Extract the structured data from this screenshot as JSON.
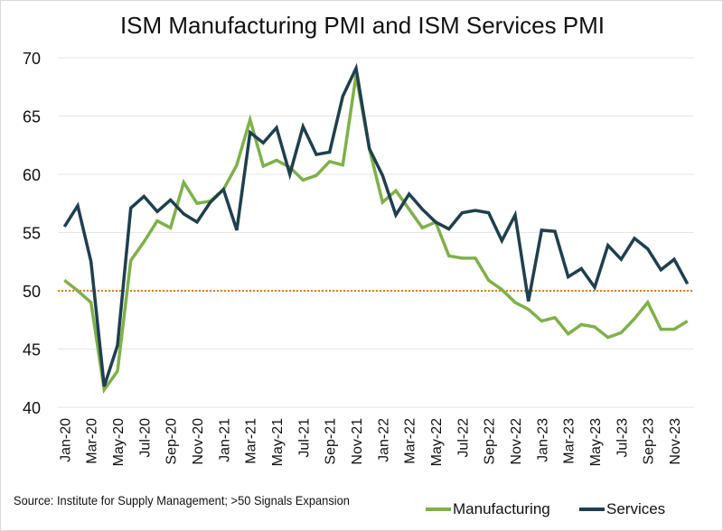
{
  "chart_data": {
    "type": "line",
    "title": "ISM Manufacturing PMI and ISM Services PMI",
    "xlabel": "",
    "ylabel": "",
    "ylim": [
      40,
      70
    ],
    "yticks": [
      40,
      45,
      50,
      55,
      60,
      65,
      70
    ],
    "grid": true,
    "legend": "bottom-right",
    "categories": [
      "Jan-20",
      "Feb-20",
      "Mar-20",
      "Apr-20",
      "May-20",
      "Jun-20",
      "Jul-20",
      "Aug-20",
      "Sep-20",
      "Oct-20",
      "Nov-20",
      "Dec-20",
      "Jan-21",
      "Feb-21",
      "Mar-21",
      "Apr-21",
      "May-21",
      "Jun-21",
      "Jul-21",
      "Aug-21",
      "Sep-21",
      "Oct-21",
      "Nov-21",
      "Dec-21",
      "Jan-22",
      "Feb-22",
      "Mar-22",
      "Apr-22",
      "May-22",
      "Jun-22",
      "Jul-22",
      "Aug-22",
      "Sep-22",
      "Oct-22",
      "Nov-22",
      "Dec-22",
      "Jan-23",
      "Feb-23",
      "Mar-23",
      "Apr-23",
      "May-23",
      "Jun-23",
      "Jul-23",
      "Aug-23",
      "Sep-23",
      "Oct-23",
      "Nov-23",
      "Dec-23"
    ],
    "tick_labels": [
      "Jan-20",
      "Mar-20",
      "May-20",
      "Jul-20",
      "Sep-20",
      "Nov-20",
      "Jan-21",
      "Mar-21",
      "May-21",
      "Jul-21",
      "Sep-21",
      "Nov-21",
      "Jan-22",
      "Mar-22",
      "May-22",
      "Jul-22",
      "Sep-22",
      "Nov-22",
      "Jan-23",
      "Mar-23",
      "May-23",
      "Jul-23",
      "Sep-23",
      "Nov-23"
    ],
    "series": [
      {
        "name": "Manufacturing",
        "color": "#7fb04a",
        "values": [
          50.9,
          50.0,
          49.0,
          41.5,
          43.1,
          52.6,
          54.2,
          56.0,
          55.4,
          59.3,
          57.5,
          57.7,
          58.7,
          60.8,
          64.7,
          60.7,
          61.2,
          60.6,
          59.5,
          59.9,
          61.1,
          60.8,
          68.5,
          62.2,
          57.6,
          58.6,
          57.0,
          55.4,
          55.9,
          53.0,
          52.8,
          52.8,
          50.9,
          50.1,
          49.0,
          48.4,
          47.4,
          47.7,
          46.3,
          47.1,
          46.9,
          46.0,
          46.4,
          47.6,
          49.0,
          46.7,
          46.7,
          47.4
        ]
      },
      {
        "name": "Services",
        "color": "#1f3f4f",
        "values": [
          55.5,
          57.3,
          52.5,
          41.8,
          45.3,
          57.1,
          58.1,
          56.8,
          57.8,
          56.6,
          55.9,
          57.6,
          58.7,
          55.2,
          63.6,
          62.7,
          64.0,
          60.0,
          64.1,
          61.7,
          61.9,
          66.7,
          69.1,
          62.2,
          59.9,
          56.5,
          58.3,
          57.0,
          55.9,
          55.3,
          56.7,
          56.9,
          56.7,
          54.3,
          56.5,
          49.1,
          55.2,
          55.1,
          51.2,
          51.9,
          50.3,
          53.9,
          52.7,
          54.5,
          53.6,
          51.8,
          52.7,
          50.6
        ]
      }
    ],
    "reference_line": {
      "value": 50,
      "color": "#e07b24"
    }
  },
  "source": "Source:  Institute for Supply Management; >50 Signals Expansion"
}
